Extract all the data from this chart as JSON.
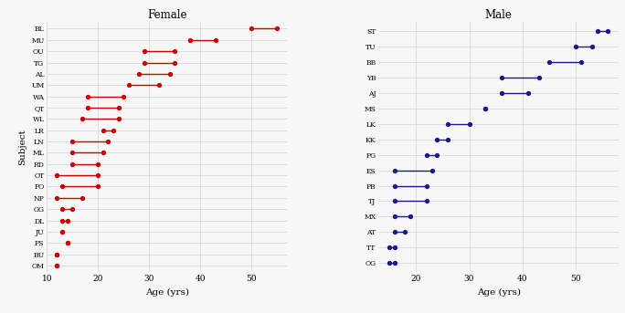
{
  "female": {
    "subjects": [
      "BL",
      "MU",
      "OU",
      "TG",
      "AL",
      "UM",
      "WA",
      "QT",
      "WL",
      "LR",
      "LN",
      "ML",
      "RD",
      "OT",
      "PO",
      "NP",
      "GG",
      "DL",
      "JU",
      "FS",
      "BU",
      "OM"
    ],
    "start": [
      50,
      38,
      29,
      29,
      28,
      26,
      18,
      18,
      17,
      21,
      15,
      15,
      15,
      12,
      13,
      12,
      13,
      13,
      13,
      14,
      12,
      12
    ],
    "end": [
      55,
      43,
      35,
      35,
      34,
      32,
      25,
      24,
      24,
      23,
      22,
      21,
      20,
      20,
      20,
      17,
      15,
      14,
      13,
      14,
      12,
      12
    ]
  },
  "male": {
    "subjects": [
      "ST",
      "TU",
      "BB",
      "YB",
      "AJ",
      "MS",
      "LK",
      "KK",
      "PG",
      "ES",
      "PB",
      "TJ",
      "MX",
      "AT",
      "TT",
      "OG"
    ],
    "start": [
      54,
      50,
      45,
      36,
      36,
      33,
      26,
      24,
      22,
      16,
      16,
      16,
      16,
      16,
      15,
      15
    ],
    "end": [
      56,
      53,
      51,
      43,
      41,
      33,
      30,
      26,
      24,
      23,
      22,
      22,
      19,
      18,
      16,
      16
    ]
  },
  "female_color": "#cc0000",
  "male_color": "#1a1a8c",
  "xlim_female": [
    10,
    57
  ],
  "xlim_male": [
    13,
    58
  ],
  "xticks_female": [
    10,
    20,
    30,
    40,
    50
  ],
  "xticks_male": [
    20,
    30,
    40,
    50
  ],
  "xlabel": "Age (yrs)",
  "ylabel": "Subject",
  "title_female": "Female",
  "title_male": "Male",
  "grid_color": "#d8d8d8",
  "background_color": "#f7f7f7"
}
